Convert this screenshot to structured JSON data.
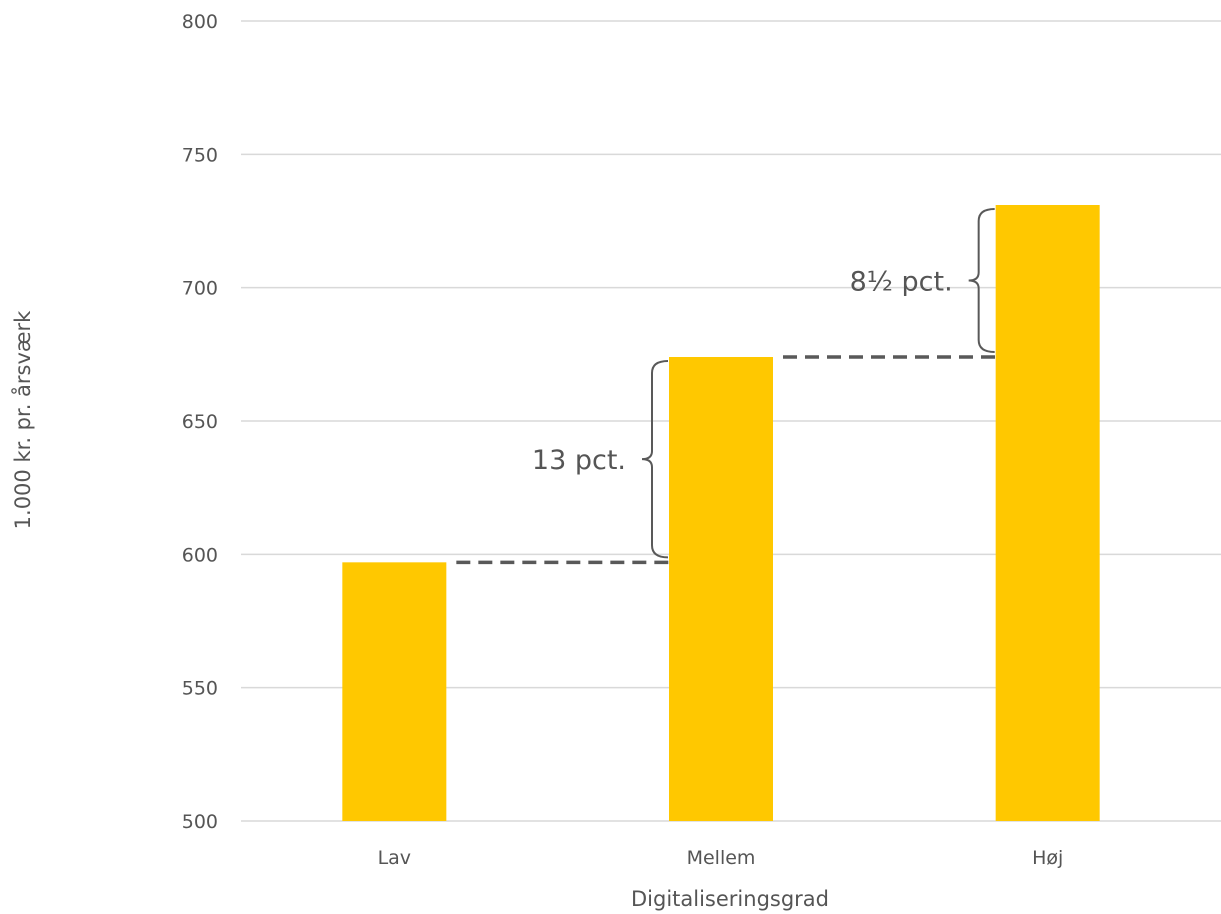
{
  "chart_data": {
    "type": "bar",
    "categories": [
      "Lav",
      "Mellem",
      "Høj"
    ],
    "values": [
      597,
      674,
      731
    ],
    "xlabel": "Digitaliseringsgrad",
    "ylabel": "1.000 kr. pr. årsværk",
    "ylim": [
      500,
      800
    ],
    "yticks": [
      500,
      550,
      600,
      650,
      700,
      750,
      800
    ],
    "grid": true,
    "colors": {
      "bar": "#FFC800",
      "grid": "#D9D9D9",
      "text": "#555555",
      "annotation_line": "#595959"
    },
    "annotations": [
      {
        "text": "13 pct.",
        "from_category": "Lav",
        "to_category": "Mellem"
      },
      {
        "text": "8½ pct.",
        "from_category": "Mellem",
        "to_category": "Høj"
      }
    ]
  }
}
